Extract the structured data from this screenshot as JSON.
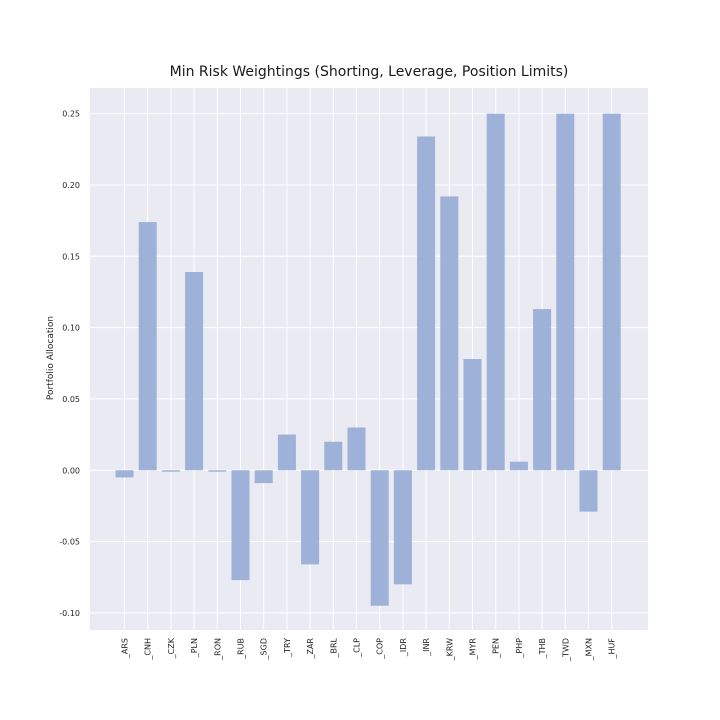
{
  "chart_data": {
    "type": "bar",
    "title": "Min Risk Weightings (Shorting, Leverage, Position Limits)",
    "xlabel": "",
    "ylabel": "Portfolio Allocation",
    "categories": [
      "_ARS",
      "_CNH",
      "_CZK",
      "_PLN",
      "_RON",
      "_RUB",
      "_SGD",
      "_TRY",
      "_ZAR",
      "_BRL",
      "_CLP",
      "_COP",
      "_IDR",
      "_INR",
      "_KRW",
      "_MYR",
      "_PEN",
      "_PHP",
      "_THB",
      "_TWD",
      "_MXN",
      "_HUF"
    ],
    "values": [
      -0.005,
      0.174,
      -0.001,
      0.139,
      -0.001,
      -0.077,
      -0.009,
      0.025,
      -0.066,
      0.02,
      0.03,
      -0.095,
      -0.08,
      0.234,
      0.192,
      0.078,
      0.25,
      0.006,
      0.113,
      0.25,
      -0.029,
      0.25
    ],
    "ylim": [
      -0.112,
      0.268
    ],
    "yticks": [
      -0.1,
      -0.05,
      0.0,
      0.05,
      0.1,
      0.15,
      0.2,
      0.25
    ],
    "ytick_labels": [
      "-0.10",
      "-0.05",
      "0.00",
      "0.05",
      "0.10",
      "0.15",
      "0.20",
      "0.25"
    ],
    "grid": true,
    "bar_color": "#9aaed6",
    "background_color": "#eaeaf2",
    "grid_color": "#ffffff"
  }
}
